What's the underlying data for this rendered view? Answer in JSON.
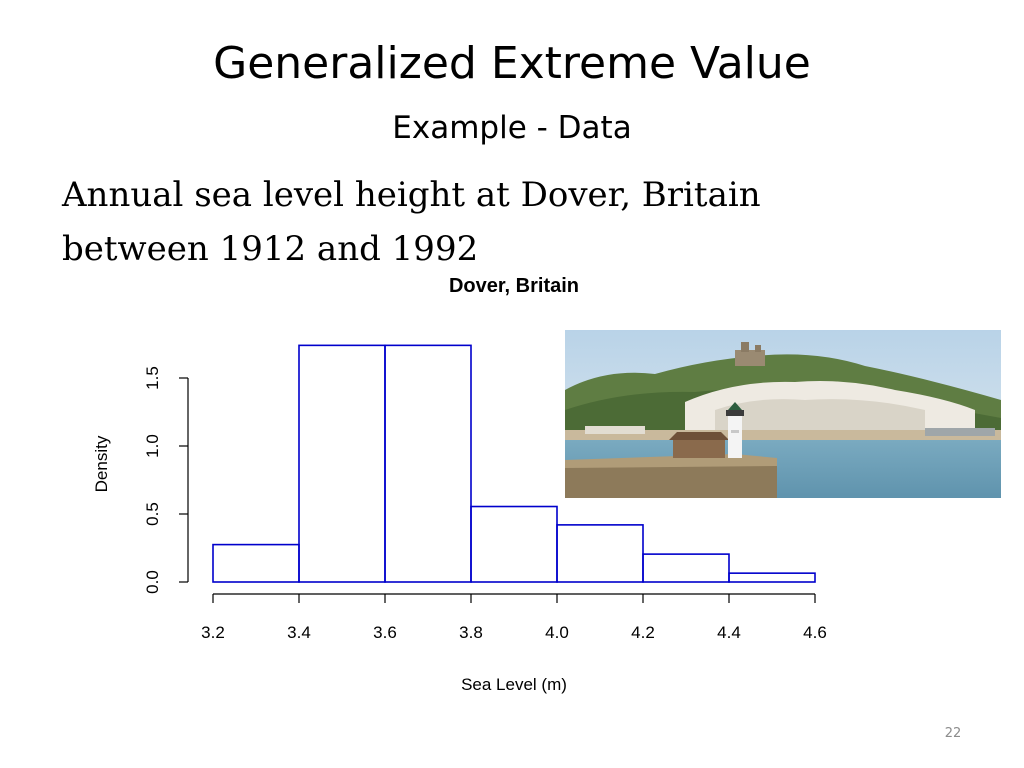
{
  "slide": {
    "title": "Generalized Extreme Value",
    "subtitle": "Example - Data",
    "body_lines": [
      "Annual sea level height at Dover, Britain",
      "between 1912 and 1992"
    ],
    "page_number": "22"
  },
  "photo": {
    "subject": "dover-white-cliffs-lighthouse"
  },
  "chart_data": {
    "type": "bar",
    "title": "Dover, Britain",
    "xlabel": "Sea Level (m)",
    "ylabel": "Density",
    "bins": [
      {
        "x0": 3.2,
        "x1": 3.4,
        "density": 0.275
      },
      {
        "x0": 3.4,
        "x1": 3.6,
        "density": 1.74
      },
      {
        "x0": 3.6,
        "x1": 3.8,
        "density": 1.74
      },
      {
        "x0": 3.8,
        "x1": 4.0,
        "density": 0.555
      },
      {
        "x0": 4.0,
        "x1": 4.2,
        "density": 0.42
      },
      {
        "x0": 4.2,
        "x1": 4.4,
        "density": 0.205
      },
      {
        "x0": 4.4,
        "x1": 4.6,
        "density": 0.065
      }
    ],
    "x_ticks": [
      "3.2",
      "3.4",
      "3.6",
      "3.8",
      "4.0",
      "4.2",
      "4.4",
      "4.6"
    ],
    "y_ticks": [
      "0.0",
      "0.5",
      "1.0",
      "1.5"
    ],
    "xlim": [
      3.2,
      4.6
    ],
    "ylim": [
      0,
      1.5
    ],
    "grid": false,
    "bar_color": "#0000cc"
  }
}
